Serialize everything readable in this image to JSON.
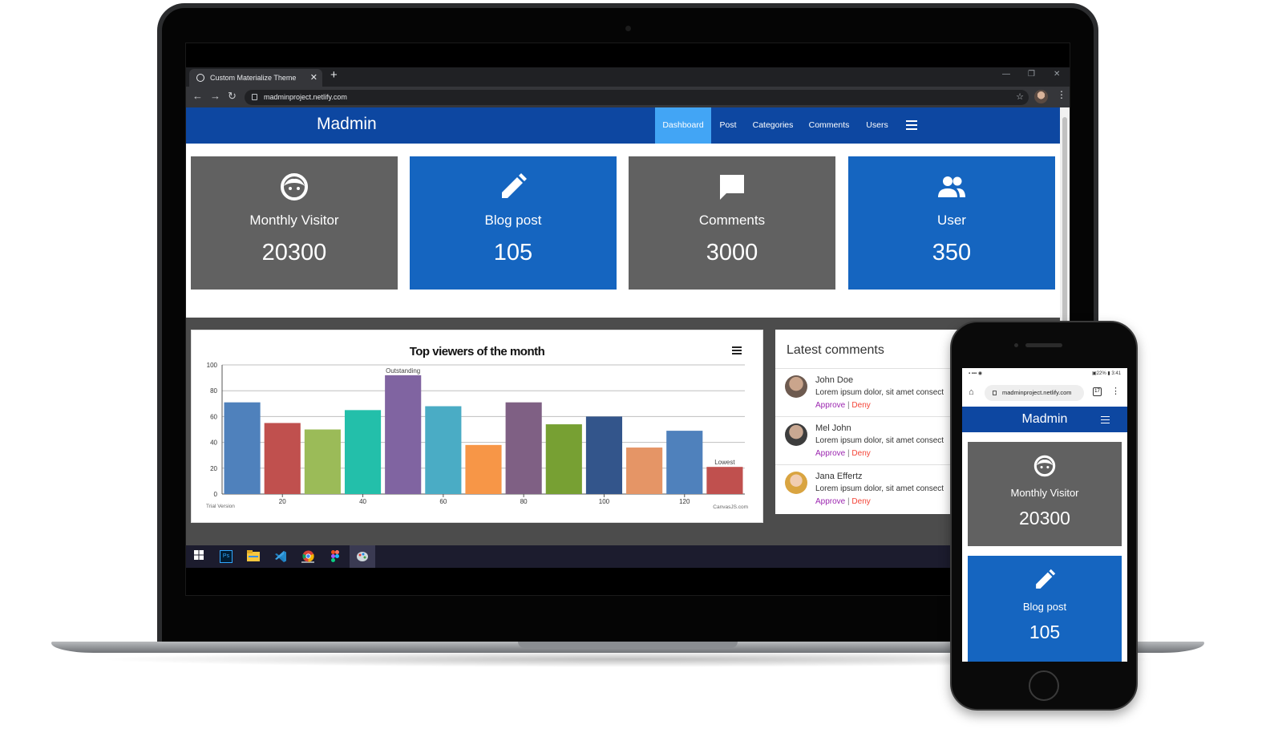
{
  "browser": {
    "tab_title": "Custom Materialize Theme",
    "tab_close": "✕",
    "new_tab": "+",
    "url": "madminproject.netlify.com",
    "window_controls": [
      "—",
      "❐",
      "✕"
    ]
  },
  "app": {
    "brand": "Madmin",
    "nav": [
      {
        "label": "Dashboard",
        "active": true
      },
      {
        "label": "Post",
        "active": false
      },
      {
        "label": "Categories",
        "active": false
      },
      {
        "label": "Comments",
        "active": false
      },
      {
        "label": "Users",
        "active": false
      }
    ],
    "accent_color": "#0d47a1",
    "active_color": "#42a5f5"
  },
  "stats": [
    {
      "label": "Monthly Visitor",
      "value": "20300",
      "icon": "face-icon",
      "color": "#616161"
    },
    {
      "label": "Blog post",
      "value": "105",
      "icon": "pencil-icon",
      "color": "#1565c0"
    },
    {
      "label": "Comments",
      "value": "3000",
      "icon": "comment-icon",
      "color": "#616161"
    },
    {
      "label": "User",
      "value": "350",
      "icon": "group-icon",
      "color": "#1565c0"
    }
  ],
  "chart_data": {
    "type": "bar",
    "title": "Top viewers of the month",
    "x": [
      10,
      20,
      30,
      40,
      50,
      60,
      70,
      80,
      90,
      100,
      110,
      120,
      130
    ],
    "values": [
      71,
      55,
      50,
      65,
      92,
      68,
      38,
      71,
      54,
      60,
      36,
      49,
      21
    ],
    "colors": [
      "#4f81bc",
      "#c0504e",
      "#9bbb58",
      "#23bfaa",
      "#8064a1",
      "#4aacc5",
      "#f79647",
      "#7f6084",
      "#77a033",
      "#33558b",
      "#e59566",
      "#4f81bc",
      "#c0504e"
    ],
    "xticks": [
      "20",
      "40",
      "60",
      "80",
      "100",
      "120"
    ],
    "yticks": [
      "0",
      "20",
      "40",
      "60",
      "80",
      "100"
    ],
    "ylim": [
      0,
      100
    ],
    "annotations": [
      {
        "index": 4,
        "text": "Outstanding"
      },
      {
        "index": 12,
        "text": "Lowest"
      }
    ],
    "watermark_left": "Trial Version",
    "watermark_right": "CanvasJS.com",
    "grid": true
  },
  "comments": {
    "title": "Latest comments",
    "items": [
      {
        "name": "John Doe",
        "text": "Lorem ipsum dolor, sit amet consect",
        "approve": "Approve",
        "deny": "Deny",
        "avatar_color": "#6d5a4f"
      },
      {
        "name": "Mel John",
        "text": "Lorem ipsum dolor, sit amet consect",
        "approve": "Approve",
        "deny": "Deny",
        "avatar_color": "#4a4a4a"
      },
      {
        "name": "Jana Effertz",
        "text": "Lorem ipsum dolor, sit amet consect",
        "approve": "Approve",
        "deny": "Deny",
        "avatar_color": "#d9a441"
      }
    ],
    "separator": "|"
  },
  "phone": {
    "status_left": "▪ ▪▪▪ ◉",
    "status_right": "▣22% ▮ 3:41",
    "url": "madminproject.netlify.com",
    "tab_count": "17",
    "brand": "Madmin",
    "cards": [
      {
        "label": "Monthly Visitor",
        "value": "20300",
        "icon": "face-icon"
      },
      {
        "label": "Blog post",
        "value": "105",
        "icon": "pencil-icon"
      }
    ]
  },
  "taskbar": {
    "items": [
      "windows-icon",
      "photoshop-icon",
      "file-explorer-icon",
      "vscode-icon",
      "chrome-icon",
      "figma-icon",
      "paint-icon"
    ],
    "ps_label": "Ps"
  }
}
